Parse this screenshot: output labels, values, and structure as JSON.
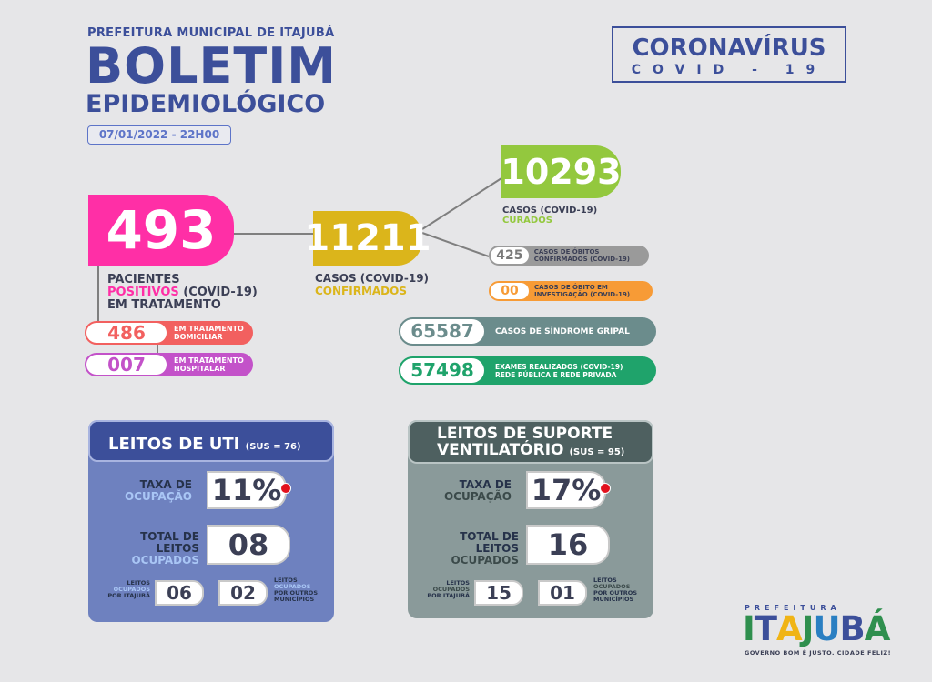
{
  "header": {
    "prefeitura": "PREFEITURA MUNICIPAL DE ITAJUBÁ",
    "boletim": "BOLETIM",
    "epidemiologico": "EPIDEMIOLÓGICO",
    "date": "07/01/2022 - 22H00",
    "covid_title": "CORONAVÍRUS",
    "covid_sub": "COVID - 19"
  },
  "positivos": {
    "value": "493",
    "caption_1": "PACIENTES",
    "caption_2a": "POSITIVOS",
    "caption_2b": " (COVID-19)",
    "caption_3": "EM TRATAMENTO",
    "domiciliar_value": "486",
    "domiciliar_label": "EM TRATAMENTO DOMICILIAR",
    "hospitalar_value": "007",
    "hospitalar_label": "EM TRATAMENTO HOSPITALAR"
  },
  "confirmados": {
    "value": "11211",
    "caption_1": "CASOS (COVID-19)",
    "caption_2": "CONFIRMADOS"
  },
  "curados": {
    "value": "10293",
    "caption_1": "CASOS (COVID-19)",
    "caption_2": "CURADOS"
  },
  "obitos": {
    "confirmados_value": "425",
    "confirmados_label": "CASOS DE ÓBITOS CONFIRMADOS (COVID-19)",
    "investigacao_value": "00",
    "investigacao_label": "CASOS DE ÓBITO EM INVESTIGAÇÃO (COVID-19)"
  },
  "sindrome_gripal": {
    "value": "65587",
    "label": "CASOS DE SÍNDROME GRIPAL"
  },
  "exames": {
    "value": "57498",
    "label_1": "EXAMES REALIZADOS (COVID-19)",
    "label_2": "REDE PÚBLICA E REDE PRIVADA"
  },
  "uti": {
    "title": "LEITOS DE UTI",
    "sus": "(SUS = 76)",
    "taxa_label_1": "TAXA DE",
    "taxa_label_2": "OCUPAÇÃO",
    "taxa_value": "11%",
    "total_label_1": "TOTAL DE",
    "total_label_2": "LEITOS",
    "total_label_3": "OCUPADOS",
    "total_value": "08",
    "itajuba_label_1": "LEITOS",
    "itajuba_label_2": "OCUPADOS",
    "itajuba_label_3": "POR ITAJUBÁ",
    "itajuba_value": "06",
    "outros_value": "02",
    "outros_label_1": "LEITOS",
    "outros_label_2": "OCUPADOS",
    "outros_label_3": "POR OUTROS",
    "outros_label_4": "MUNICÍPIOS"
  },
  "suporte": {
    "title_1": "LEITOS DE SUPORTE",
    "title_2": "VENTILATÓRIO",
    "sus": "(SUS = 95)",
    "taxa_label_1": "TAXA DE",
    "taxa_label_2": "OCUPAÇÃO",
    "taxa_value": "17%",
    "total_label_1": "TOTAL DE",
    "total_label_2": "LEITOS",
    "total_label_3": "OCUPADOS",
    "total_value": "16",
    "itajuba_label_1": "LEITOS",
    "itajuba_label_2": "OCUPADOS",
    "itajuba_label_3": "POR ITAJUBÁ",
    "itajuba_value": "15",
    "outros_value": "01",
    "outros_label_1": "LEITOS",
    "outros_label_2": "OCUPADOS",
    "outros_label_3": "POR OUTROS",
    "outros_label_4": "MUNICÍPIOS"
  },
  "logo": {
    "prefeitura": "PREFEITURA",
    "letters": [
      "I",
      "T",
      "A",
      "J",
      "U",
      "B",
      "Á"
    ],
    "letter_colors": [
      "#2f8f4e",
      "#3c4f9a",
      "#f0b415",
      "#2f8f4e",
      "#2a7fc2",
      "#3c4f9a",
      "#2f8f4e"
    ],
    "tagline": "GOVERNO BOM É JUSTO. CIDADE FELIZ!"
  },
  "colors": {
    "navy": "#3c4f9a",
    "pink": "#ff2fa6",
    "gold": "#dbb51b",
    "green": "#93c83e",
    "salmon": "#f2605f",
    "purple": "#c352c9",
    "gray": "#9a9a9a",
    "orange": "#f79b36",
    "slate": "#6b8c8c",
    "teal": "#1fa36b",
    "uti_bg": "#6e81bf",
    "uti_head": "#3c4f9a",
    "sup_bg": "#8a9a9a",
    "sup_head": "#4e6060"
  }
}
